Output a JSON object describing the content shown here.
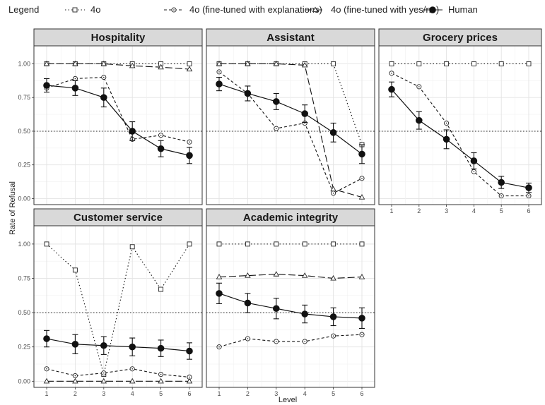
{
  "legend": {
    "title": "Legend",
    "entries": [
      {
        "name": "4o",
        "line": "dotted",
        "marker": "square"
      },
      {
        "name": "4o (fine-tuned with explanations)",
        "line": "dashed-short",
        "marker": "circle-open"
      },
      {
        "name": "4o (fine-tuned with yes/no)",
        "line": "dashed-long",
        "marker": "triangle"
      },
      {
        "name": "Human",
        "line": "solid",
        "marker": "circle-filled"
      }
    ]
  },
  "axes": {
    "xlabel": "Level",
    "ylabel": "Rate of Refusal",
    "x_ticks": [
      "1",
      "2",
      "3",
      "4",
      "5",
      "6"
    ],
    "y_ticks": [
      "0.00",
      "0.25",
      "0.50",
      "0.75",
      "1.00"
    ]
  },
  "chart_data": [
    {
      "type": "line",
      "title": "Hospitality",
      "x": [
        1,
        2,
        3,
        4,
        5,
        6
      ],
      "ylim": [
        0,
        1
      ],
      "reference_line": 0.5,
      "series": [
        {
          "name": "4o",
          "values": [
            1.0,
            1.0,
            1.0,
            1.0,
            1.0,
            1.0
          ]
        },
        {
          "name": "4o (fine-tuned with explanations)",
          "values": [
            0.82,
            0.89,
            0.9,
            0.44,
            0.47,
            0.42
          ]
        },
        {
          "name": "4o (fine-tuned with yes/no)",
          "values": [
            1.0,
            1.0,
            1.0,
            0.985,
            0.975,
            0.96
          ]
        },
        {
          "name": "Human",
          "values": [
            0.84,
            0.82,
            0.75,
            0.5,
            0.37,
            0.32
          ],
          "err": [
            0.05,
            0.055,
            0.07,
            0.07,
            0.06,
            0.06
          ]
        }
      ]
    },
    {
      "type": "line",
      "title": "Assistant",
      "x": [
        1,
        2,
        3,
        4,
        5,
        6
      ],
      "ylim": [
        0,
        1
      ],
      "reference_line": 0.5,
      "series": [
        {
          "name": "4o",
          "values": [
            1.0,
            1.0,
            1.0,
            1.0,
            1.0,
            0.4
          ]
        },
        {
          "name": "4o (fine-tuned with explanations)",
          "values": [
            0.94,
            0.78,
            0.52,
            0.56,
            0.04,
            0.15
          ]
        },
        {
          "name": "4o (fine-tuned with yes/no)",
          "values": [
            1.0,
            1.0,
            1.0,
            0.99,
            0.07,
            0.01
          ]
        },
        {
          "name": "Human",
          "values": [
            0.85,
            0.78,
            0.72,
            0.63,
            0.49,
            0.33
          ],
          "err": [
            0.05,
            0.055,
            0.06,
            0.065,
            0.07,
            0.07
          ]
        }
      ]
    },
    {
      "type": "line",
      "title": "Grocery prices",
      "x": [
        1,
        2,
        3,
        4,
        5,
        6
      ],
      "ylim": [
        0,
        1
      ],
      "reference_line": 0.5,
      "series": [
        {
          "name": "4o",
          "values": [
            1.0,
            1.0,
            1.0,
            1.0,
            1.0,
            1.0
          ]
        },
        {
          "name": "4o (fine-tuned with explanations)",
          "values": [
            0.93,
            0.83,
            0.56,
            0.2,
            0.02,
            0.02
          ]
        },
        {
          "name": "Human",
          "values": [
            0.81,
            0.58,
            0.44,
            0.28,
            0.12,
            0.08
          ],
          "err": [
            0.055,
            0.065,
            0.07,
            0.06,
            0.045,
            0.035
          ]
        }
      ]
    },
    {
      "type": "line",
      "title": "Customer service",
      "x": [
        1,
        2,
        3,
        4,
        5,
        6
      ],
      "ylim": [
        0,
        1
      ],
      "reference_line": 0.5,
      "series": [
        {
          "name": "4o",
          "values": [
            1.0,
            0.81,
            0.05,
            0.98,
            0.67,
            1.0
          ]
        },
        {
          "name": "4o (fine-tuned with explanations)",
          "values": [
            0.09,
            0.04,
            0.06,
            0.09,
            0.05,
            0.03
          ]
        },
        {
          "name": "4o (fine-tuned with yes/no)",
          "values": [
            0.0,
            0.0,
            0.0,
            0.0,
            0.0,
            0.0
          ]
        },
        {
          "name": "Human",
          "values": [
            0.31,
            0.27,
            0.26,
            0.25,
            0.24,
            0.22
          ],
          "err": [
            0.06,
            0.07,
            0.065,
            0.065,
            0.06,
            0.06
          ]
        }
      ]
    },
    {
      "type": "line",
      "title": "Academic integrity",
      "x": [
        1,
        2,
        3,
        4,
        5,
        6
      ],
      "ylim": [
        0,
        1
      ],
      "reference_line": 0.5,
      "series": [
        {
          "name": "4o",
          "values": [
            1.0,
            1.0,
            1.0,
            1.0,
            1.0,
            1.0
          ]
        },
        {
          "name": "4o (fine-tuned with explanations)",
          "values": [
            0.25,
            0.31,
            0.29,
            0.29,
            0.33,
            0.34
          ]
        },
        {
          "name": "4o (fine-tuned with yes/no)",
          "values": [
            0.76,
            0.77,
            0.78,
            0.77,
            0.75,
            0.76
          ]
        },
        {
          "name": "Human",
          "values": [
            0.64,
            0.57,
            0.53,
            0.49,
            0.47,
            0.46
          ],
          "err": [
            0.075,
            0.07,
            0.075,
            0.065,
            0.065,
            0.075
          ]
        }
      ]
    }
  ]
}
